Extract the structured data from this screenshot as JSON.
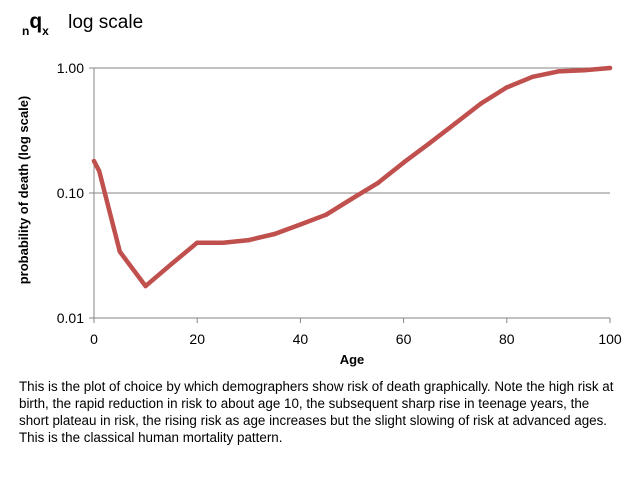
{
  "heading": {
    "subscript_left": "n",
    "symbol": "q",
    "subscript_right": "x",
    "scale_note": "log scale"
  },
  "caption": "This is the plot of choice by which demographers show risk of death graphically.  Note the high risk at birth, the rapid reduction in risk to about age 10, the subsequent sharp rise in teenage years, the short plateau in risk, the rising risk as age increases but the slight slowing of risk at advanced ages. This is the classical human mortality pattern.",
  "chart_data": {
    "type": "line",
    "title": "",
    "xlabel": "Age",
    "ylabel": "probability of death (log scale)",
    "xlim": [
      0,
      100
    ],
    "ylim": [
      0.01,
      1.0
    ],
    "y_scale": "log",
    "grid": "horizontal",
    "x_ticks": [
      {
        "value": 0,
        "label": "0"
      },
      {
        "value": 20,
        "label": "20"
      },
      {
        "value": 40,
        "label": "40"
      },
      {
        "value": 60,
        "label": "60"
      },
      {
        "value": 80,
        "label": "80"
      },
      {
        "value": 100,
        "label": "100"
      }
    ],
    "y_ticks": [
      {
        "value": 0.01,
        "label": "0.01"
      },
      {
        "value": 0.1,
        "label": "0.10"
      },
      {
        "value": 1.0,
        "label": "1.00"
      }
    ],
    "line_color": "#c0504d",
    "series": [
      {
        "x": [
          0,
          1,
          5,
          10,
          15,
          20,
          25,
          30,
          35,
          40,
          45,
          50,
          55,
          60,
          65,
          70,
          75,
          80,
          85,
          90,
          95,
          100
        ],
        "y": [
          0.18,
          0.15,
          0.034,
          0.018,
          0.027,
          0.04,
          0.04,
          0.042,
          0.047,
          0.056,
          0.067,
          0.09,
          0.12,
          0.175,
          0.25,
          0.36,
          0.52,
          0.7,
          0.85,
          0.94,
          0.96,
          1.0
        ]
      }
    ]
  }
}
